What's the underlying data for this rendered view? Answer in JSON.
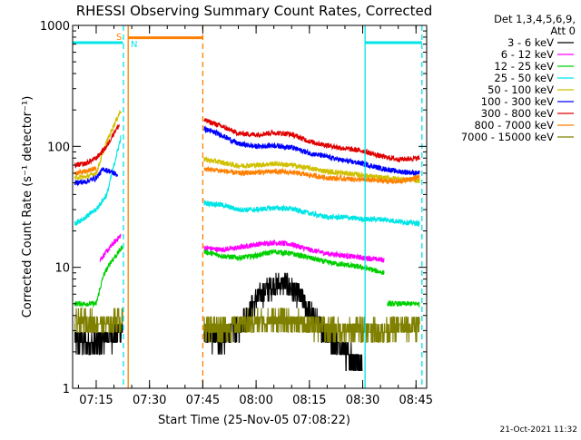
{
  "chart_data": {
    "type": "line",
    "title": "RHESSI Observing Summary Count Rates, Corrected",
    "xlabel": "Start Time (25-Nov-05 07:08:22)",
    "ylabel": "Corrected Count Rate (s⁻¹ detector⁻¹)",
    "y_scale": "log",
    "ylim": [
      1,
      1000
    ],
    "y_ticks": [
      {
        "value": 1,
        "label": "1"
      },
      {
        "value": 10,
        "label": "10"
      },
      {
        "value": 100,
        "label": "100"
      },
      {
        "value": 1000,
        "label": "1000"
      }
    ],
    "xlim": [
      "07:08:22",
      "08:48:00"
    ],
    "x_ticks": [
      "07:15",
      "07:30",
      "07:45",
      "08:00",
      "08:15",
      "08:30",
      "08:45"
    ],
    "legend_header": [
      "Det 1,3,4,5,6,9,",
      "Att 0"
    ],
    "legend_position": "right",
    "timestamp": "21-Oct-2021 11:32",
    "flags": {
      "saa_label": "S",
      "night_label": "N"
    },
    "bands": [
      {
        "value": 720,
        "color": "#00e5e5",
        "segments": [
          [
            "07:08:22",
            "07:22:30"
          ],
          [
            "08:30:40",
            "08:46:40"
          ]
        ]
      },
      {
        "value": 790,
        "color": "#ff7f00",
        "segments": [
          [
            "07:24:00",
            "07:45:00"
          ]
        ]
      }
    ],
    "vertical_markers": [
      {
        "time": "07:22:40",
        "color": "#00e5e5",
        "style": "dashed"
      },
      {
        "time": "07:24:00",
        "color": "#ff7f00",
        "style": "solid"
      },
      {
        "time": "07:45:00",
        "color": "#ff7f00",
        "style": "dashed"
      },
      {
        "time": "08:30:40",
        "color": "#00e5e5",
        "style": "solid"
      },
      {
        "time": "08:46:40",
        "color": "#00e5e5",
        "style": "dashed"
      }
    ],
    "series": [
      {
        "name": "3 - 6 keV",
        "color": "#000000",
        "segments": [
          [
            [
              "07:09:00",
              2.5
            ],
            [
              "07:13:00",
              2.3
            ],
            [
              "07:16:00",
              2.4
            ],
            [
              "07:20:00",
              2.8
            ],
            [
              "07:22:30",
              3.2
            ]
          ],
          [
            [
              "07:45:20",
              2.8
            ],
            [
              "07:50:00",
              2.5
            ],
            [
              "07:55:00",
              3.2
            ],
            [
              "08:00:00",
              5.5
            ],
            [
              "08:04:00",
              7.0
            ],
            [
              "08:08:00",
              7.5
            ],
            [
              "08:12:00",
              6.0
            ],
            [
              "08:16:00",
              4.0
            ],
            [
              "08:20:00",
              2.8
            ],
            [
              "08:25:00",
              2.0
            ],
            [
              "08:30:00",
              1.45
            ]
          ]
        ]
      },
      {
        "name": "6 - 12 keV",
        "color": "#ff00ff",
        "segments": [
          [
            [
              "07:16:00",
              11.5
            ],
            [
              "07:18:00",
              13.5
            ],
            [
              "07:20:00",
              16.0
            ],
            [
              "07:22:00",
              18.5
            ]
          ],
          [
            [
              "07:45:20",
              14.5
            ],
            [
              "07:50:00",
              14.0
            ],
            [
              "07:55:00",
              14.5
            ],
            [
              "08:00:00",
              15.5
            ],
            [
              "08:05:00",
              16.0
            ],
            [
              "08:10:00",
              15.5
            ],
            [
              "08:15:00",
              14.0
            ],
            [
              "08:20:00",
              13.0
            ],
            [
              "08:25:00",
              12.5
            ],
            [
              "08:30:00",
              12.0
            ],
            [
              "08:36:00",
              11.5
            ]
          ]
        ]
      },
      {
        "name": "12 - 25 keV",
        "color": "#00d000",
        "segments": [
          [
            [
              "07:09:00",
              5.0
            ],
            [
              "07:12:00",
              5.0
            ],
            [
              "07:15:00",
              5.0
            ],
            [
              "07:17:00",
              8.5
            ],
            [
              "07:19:00",
              11.0
            ],
            [
              "07:21:00",
              13.0
            ],
            [
              "07:22:30",
              15.0
            ]
          ],
          [
            [
              "07:45:20",
              13.5
            ],
            [
              "07:50:00",
              12.5
            ],
            [
              "07:55:00",
              12.0
            ],
            [
              "08:00:00",
              12.5
            ],
            [
              "08:05:00",
              13.5
            ],
            [
              "08:10:00",
              13.0
            ],
            [
              "08:15:00",
              12.0
            ],
            [
              "08:20:00",
              11.0
            ],
            [
              "08:25:00",
              10.5
            ],
            [
              "08:30:00",
              10.0
            ],
            [
              "08:36:00",
              9.0
            ]
          ],
          [
            [
              "08:37:00",
              5.0
            ],
            [
              "08:41:00",
              5.0
            ],
            [
              "08:46:00",
              5.0
            ]
          ]
        ]
      },
      {
        "name": "25 - 50 keV",
        "color": "#00e5e5",
        "segments": [
          [
            [
              "07:09:00",
              23.0
            ],
            [
              "07:12:00",
              26.0
            ],
            [
              "07:15:00",
              30.0
            ],
            [
              "07:18:00",
              40.0
            ],
            [
              "07:20:00",
              70.0
            ],
            [
              "07:22:00",
              120.0
            ]
          ],
          [
            [
              "07:45:20",
              34.0
            ],
            [
              "07:50:00",
              33.0
            ],
            [
              "07:55:00",
              30.0
            ],
            [
              "08:00:00",
              30.0
            ],
            [
              "08:05:00",
              31.0
            ],
            [
              "08:10:00",
              30.5
            ],
            [
              "08:15:00",
              28.0
            ],
            [
              "08:20:00",
              26.0
            ],
            [
              "08:25:00",
              26.0
            ],
            [
              "08:30:00",
              25.0
            ],
            [
              "08:35:00",
              25.0
            ],
            [
              "08:40:00",
              24.0
            ],
            [
              "08:46:00",
              23.0
            ]
          ]
        ]
      },
      {
        "name": "50 - 100 keV",
        "color": "#d0c000",
        "segments": [
          [
            [
              "07:09:00",
              55.0
            ],
            [
              "07:12:00",
              56.0
            ],
            [
              "07:15:00",
              60.0
            ],
            [
              "07:18:00",
              110.0
            ],
            [
              "07:20:00",
              150.0
            ],
            [
              "07:22:00",
              200.0
            ]
          ],
          [
            [
              "07:45:20",
              78.0
            ],
            [
              "07:50:00",
              74.0
            ],
            [
              "07:55:00",
              69.0
            ],
            [
              "08:00:00",
              70.0
            ],
            [
              "08:05:00",
              72.0
            ],
            [
              "08:10:00",
              70.0
            ],
            [
              "08:15:00",
              66.0
            ],
            [
              "08:20:00",
              62.0
            ],
            [
              "08:25:00",
              60.0
            ],
            [
              "08:30:00",
              58.0
            ],
            [
              "08:35:00",
              55.0
            ],
            [
              "08:40:00",
              54.0
            ],
            [
              "08:46:00",
              52.0
            ]
          ]
        ]
      },
      {
        "name": "100 - 300 keV",
        "color": "#0000ff",
        "segments": [
          [
            [
              "07:09:00",
              50.0
            ],
            [
              "07:12:00",
              51.0
            ],
            [
              "07:15:00",
              55.0
            ],
            [
              "07:17:00",
              65.0
            ],
            [
              "07:19:00",
              62.0
            ],
            [
              "07:21:00",
              58.0
            ]
          ],
          [
            [
              "07:45:20",
              140.0
            ],
            [
              "07:50:00",
              125.0
            ],
            [
              "07:55:00",
              105.0
            ],
            [
              "08:00:00",
              100.0
            ],
            [
              "08:05:00",
              102.0
            ],
            [
              "08:10:00",
              98.0
            ],
            [
              "08:15:00",
              88.0
            ],
            [
              "08:20:00",
              82.0
            ],
            [
              "08:25:00",
              76.0
            ],
            [
              "08:30:00",
              72.0
            ],
            [
              "08:35:00",
              66.0
            ],
            [
              "08:40:00",
              62.0
            ],
            [
              "08:46:00",
              60.0
            ]
          ]
        ]
      },
      {
        "name": "300 - 800 keV",
        "color": "#e00000",
        "segments": [
          [
            [
              "07:09:00",
              70.0
            ],
            [
              "07:12:00",
              72.0
            ],
            [
              "07:15:00",
              80.0
            ],
            [
              "07:18:00",
              100.0
            ],
            [
              "07:20:00",
              130.0
            ],
            [
              "07:21:30",
              150.0
            ]
          ],
          [
            [
              "07:45:20",
              165.0
            ],
            [
              "07:50:00",
              148.0
            ],
            [
              "07:55:00",
              128.0
            ],
            [
              "08:00:00",
              125.0
            ],
            [
              "08:05:00",
              130.0
            ],
            [
              "08:10:00",
              126.0
            ],
            [
              "08:15:00",
              110.0
            ],
            [
              "08:20:00",
              102.0
            ],
            [
              "08:25:00",
              96.0
            ],
            [
              "08:30:00",
              92.0
            ],
            [
              "08:35:00",
              83.0
            ],
            [
              "08:40:00",
              78.0
            ],
            [
              "08:46:00",
              80.0
            ]
          ]
        ]
      },
      {
        "name": "800 - 7000 keV",
        "color": "#ff7f00",
        "segments": [
          [
            [
              "07:09:00",
              60.0
            ],
            [
              "07:12:00",
              62.0
            ],
            [
              "07:15:00",
              66.0
            ]
          ],
          [
            [
              "07:45:20",
              65.0
            ],
            [
              "07:50:00",
              63.0
            ],
            [
              "07:55:00",
              60.0
            ],
            [
              "08:00:00",
              61.0
            ],
            [
              "08:05:00",
              62.0
            ],
            [
              "08:10:00",
              61.0
            ],
            [
              "08:15:00",
              58.0
            ],
            [
              "08:20:00",
              55.0
            ],
            [
              "08:25:00",
              54.0
            ],
            [
              "08:30:00",
              53.0
            ],
            [
              "08:35:00",
              52.0
            ],
            [
              "08:40:00",
              51.0
            ],
            [
              "08:46:00",
              56.0
            ]
          ]
        ]
      },
      {
        "name": "7000 - 15000 keV",
        "color": "#808000",
        "segments": [
          [
            [
              "07:09:00",
              3.5
            ],
            [
              "07:12:00",
              3.6
            ],
            [
              "07:15:00",
              3.5
            ],
            [
              "07:18:00",
              3.4
            ],
            [
              "07:20:00",
              3.6
            ],
            [
              "07:22:30",
              3.7
            ]
          ],
          [
            [
              "07:45:20",
              3.3
            ],
            [
              "07:50:00",
              3.2
            ],
            [
              "07:55:00",
              3.4
            ],
            [
              "08:00:00",
              3.6
            ],
            [
              "08:05:00",
              3.7
            ],
            [
              "08:10:00",
              3.6
            ],
            [
              "08:15:00",
              3.4
            ],
            [
              "08:20:00",
              3.2
            ],
            [
              "08:25:00",
              3.0
            ],
            [
              "08:30:00",
              3.2
            ],
            [
              "08:35:00",
              3.0
            ],
            [
              "08:40:00",
              3.2
            ],
            [
              "08:46:00",
              3.3
            ]
          ]
        ]
      }
    ]
  }
}
